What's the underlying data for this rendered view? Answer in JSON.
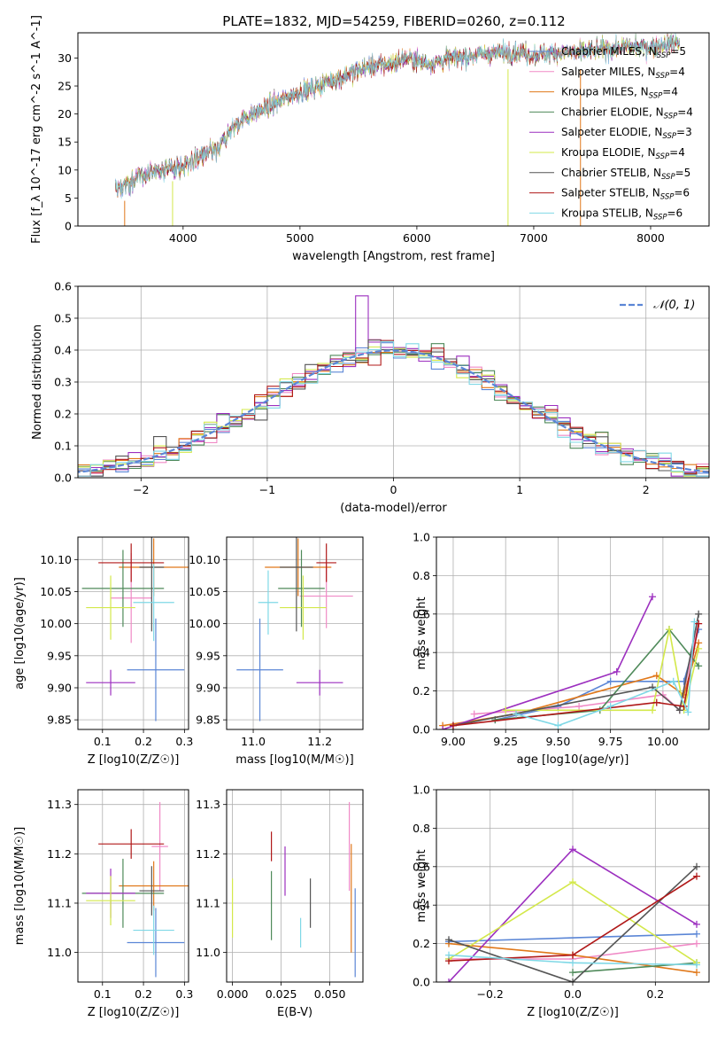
{
  "figure_title": "PLATE=1832, MJD=54259, FIBERID=0260, z=0.112",
  "legend_labels": [
    "Chabrier MILES, N",
    "Salpeter MILES, N",
    "Kroupa MILES, N",
    "Chabrier ELODIE, N",
    "Salpeter ELODIE, N",
    "Kroupa ELODIE, N",
    "Chabrier STELIB, N",
    "Salpeter STELIB, N",
    "Kroupa STELIB, N"
  ],
  "legend_sub": "SSP",
  "legend_counts": [
    "=5",
    "=4",
    "=4",
    "=4",
    "=3",
    "=4",
    "=5",
    "=6",
    "=6"
  ],
  "normal_label": "𝒩(0, 1)",
  "colors": [
    "#5b86d6",
    "#f08ac6",
    "#e0781a",
    "#4f8a5a",
    "#9c2fbf",
    "#d3e84a",
    "#555555",
    "#b01818",
    "#7fd8e6"
  ],
  "chart_data": [
    {
      "type": "line",
      "title": "PLATE=1832, MJD=54259, FIBERID=0260, z=0.112",
      "xlabel": "wavelength [Angstrom, rest frame]",
      "ylabel": "Flux [f_λ 10^-17 erg cm^-2 s^-1 A^-1]",
      "xlim": [
        3100,
        8500
      ],
      "ylim": [
        0,
        34.5
      ],
      "xticks": [
        "4000",
        "5000",
        "6000",
        "7000",
        "8000"
      ],
      "yticks": [
        "0",
        "5",
        "10",
        "15",
        "20",
        "25",
        "30"
      ],
      "spectrum_knots": [
        [
          3420,
          6.5
        ],
        [
          3500,
          7
        ],
        [
          3600,
          8.5
        ],
        [
          3700,
          9.5
        ],
        [
          3800,
          10
        ],
        [
          3900,
          10.5
        ],
        [
          4000,
          10.5
        ],
        [
          4100,
          12
        ],
        [
          4200,
          12.8
        ],
        [
          4300,
          13.5
        ],
        [
          4400,
          17
        ],
        [
          4500,
          19
        ],
        [
          4700,
          21
        ],
        [
          4900,
          23
        ],
        [
          5000,
          24
        ],
        [
          5100,
          24.5
        ],
        [
          5200,
          25.5
        ],
        [
          5400,
          27
        ],
        [
          5600,
          28.5
        ],
        [
          5800,
          29
        ],
        [
          5900,
          30
        ],
        [
          6000,
          29.5
        ],
        [
          6100,
          29
        ],
        [
          6300,
          30
        ],
        [
          6500,
          30.5
        ],
        [
          6700,
          31
        ],
        [
          6900,
          31
        ],
        [
          7000,
          30.5
        ],
        [
          7200,
          31
        ],
        [
          7400,
          31
        ],
        [
          7600,
          31.5
        ],
        [
          7800,
          32
        ],
        [
          8000,
          32
        ],
        [
          8250,
          33
        ]
      ],
      "grid": false,
      "legend_position": "top-right"
    },
    {
      "type": "histogram",
      "xlabel": "(data-model)/error",
      "ylabel": "Normed distribution",
      "xlim": [
        -2.5,
        2.5
      ],
      "ylim": [
        0,
        0.6
      ],
      "xticks": [
        "−2",
        "−1",
        "0",
        "1",
        "2"
      ],
      "yticks": [
        "0.0",
        "0.1",
        "0.2",
        "0.3",
        "0.4",
        "0.5",
        "0.6"
      ],
      "bin_width": 0.1,
      "grid": true,
      "legend_position": "top-right"
    },
    {
      "type": "scatter",
      "xlabel": "Z [log10(Z/Z☉)]",
      "ylabel": "age [log10(age/yr)]",
      "xlim": [
        0.04,
        0.31
      ],
      "ylim": [
        9.835,
        10.135
      ],
      "xticks": [
        "0.1",
        "0.2",
        "0.3"
      ],
      "yticks": [
        "9.85",
        "9.90",
        "9.95",
        "10.00",
        "10.05",
        "10.10"
      ],
      "points": [
        [
          0.23,
          9.928,
          0.07,
          0.08
        ],
        [
          0.17,
          10.04,
          0.05,
          0.07
        ],
        [
          0.225,
          10.088,
          0.085,
          0.045
        ],
        [
          0.15,
          10.055,
          0.1,
          0.06
        ],
        [
          0.12,
          9.908,
          0.06,
          0.02
        ],
        [
          0.12,
          10.025,
          0.06,
          0.05
        ],
        [
          0.22,
          10.088,
          0.03,
          0.1
        ],
        [
          0.17,
          10.095,
          0.08,
          0.03
        ],
        [
          0.225,
          10.033,
          0.05,
          0.06
        ]
      ]
    },
    {
      "type": "scatter",
      "xlabel": "mass [log10(M/M☉)]",
      "ylabel": "",
      "xlim": [
        10.92,
        11.33
      ],
      "ylim": [
        9.835,
        10.135
      ],
      "xticks": [
        "11.0",
        "11.2"
      ],
      "yticks": [
        "9.85",
        "9.90",
        "9.95",
        "10.00",
        "10.05",
        "10.10"
      ],
      "points": [
        [
          11.02,
          9.928,
          0.07,
          0.08
        ],
        [
          11.22,
          10.043,
          0.08,
          0.05
        ],
        [
          11.135,
          10.088,
          0.1,
          0.045
        ],
        [
          11.145,
          10.055,
          0.07,
          0.06
        ],
        [
          11.2,
          9.908,
          0.07,
          0.02
        ],
        [
          11.15,
          10.025,
          0.07,
          0.05
        ],
        [
          11.13,
          10.088,
          0.05,
          0.1
        ],
        [
          11.22,
          10.095,
          0.03,
          0.03
        ],
        [
          11.045,
          10.033,
          0.03,
          0.05
        ]
      ]
    },
    {
      "type": "line",
      "xlabel": "age [log10(age/yr)]",
      "ylabel": "mass weight",
      "xlim": [
        8.92,
        10.22
      ],
      "ylim": [
        0,
        1
      ],
      "xticks": [
        "9.00",
        "9.25",
        "9.50",
        "9.75",
        "10.00"
      ],
      "yticks": [
        "0.0",
        "0.2",
        "0.4",
        "0.6",
        "0.8",
        "1.0"
      ],
      "series": [
        {
          "values": [
            [
              9.2,
              0.05
            ],
            [
              9.5,
              0.12
            ],
            [
              9.75,
              0.25
            ],
            [
              10.1,
              0.25
            ],
            [
              10.17,
              0.52
            ]
          ]
        },
        {
          "values": [
            [
              9.1,
              0.08
            ],
            [
              9.6,
              0.12
            ],
            [
              10.0,
              0.18
            ],
            [
              10.08,
              0.1
            ],
            [
              10.17,
              0.55
            ]
          ]
        },
        {
          "values": [
            [
              8.95,
              0.02
            ],
            [
              9.3,
              0.08
            ],
            [
              9.97,
              0.28
            ],
            [
              10.1,
              0.18
            ],
            [
              10.17,
              0.45
            ]
          ]
        },
        {
          "values": [
            [
              9.2,
              0.05
            ],
            [
              9.7,
              0.1
            ],
            [
              10.03,
              0.52
            ],
            [
              10.17,
              0.33
            ]
          ]
        },
        {
          "values": [
            [
              8.95,
              0.0
            ],
            [
              9.78,
              0.3
            ],
            [
              9.95,
              0.69
            ]
          ]
        },
        {
          "values": [
            [
              9.25,
              0.1
            ],
            [
              9.95,
              0.1
            ],
            [
              10.03,
              0.52
            ],
            [
              10.1,
              0.1
            ],
            [
              10.17,
              0.42
            ]
          ]
        },
        {
          "values": [
            [
              9.0,
              0.02
            ],
            [
              9.95,
              0.22
            ],
            [
              10.08,
              0.1
            ],
            [
              10.17,
              0.6
            ]
          ]
        },
        {
          "values": [
            [
              9.0,
              0.02
            ],
            [
              9.97,
              0.14
            ],
            [
              10.1,
              0.12
            ],
            [
              10.17,
              0.55
            ]
          ]
        },
        {
          "values": [
            [
              9.3,
              0.08
            ],
            [
              9.5,
              0.02
            ],
            [
              9.75,
              0.12
            ],
            [
              10.05,
              0.25
            ],
            [
              10.12,
              0.09
            ],
            [
              10.15,
              0.56
            ]
          ]
        }
      ]
    },
    {
      "type": "scatter",
      "xlabel": "Z [log10(Z/Z☉)]",
      "ylabel": "mass [log10(M/M☉)]",
      "xlim": [
        0.04,
        0.31
      ],
      "ylim": [
        10.94,
        11.33
      ],
      "xticks": [
        "0.1",
        "0.2",
        "0.3"
      ],
      "yticks": [
        "11.0",
        "11.1",
        "11.2",
        "11.3"
      ],
      "points": [
        [
          0.23,
          11.02,
          0.07,
          0.07
        ],
        [
          0.24,
          11.215,
          0.02,
          0.09
        ],
        [
          0.225,
          11.135,
          0.085,
          0.05
        ],
        [
          0.15,
          11.12,
          0.1,
          0.07
        ],
        [
          0.12,
          11.12,
          0.06,
          0.05
        ],
        [
          0.12,
          11.105,
          0.06,
          0.05
        ],
        [
          0.22,
          11.125,
          0.03,
          0.05
        ],
        [
          0.17,
          11.22,
          0.08,
          0.03
        ],
        [
          0.225,
          11.045,
          0.05,
          0.05
        ]
      ]
    },
    {
      "type": "scatter",
      "xlabel": "E(B-V)",
      "ylabel": "",
      "xlim": [
        -0.003,
        0.067
      ],
      "ylim": [
        10.94,
        11.33
      ],
      "xticks": [
        "0.000",
        "0.025",
        "0.050"
      ],
      "yticks": [
        "11.0",
        "11.1",
        "11.2",
        "11.3"
      ],
      "points": [
        [
          0.063,
          11.04,
          0,
          0.09
        ],
        [
          0.06,
          11.215,
          0,
          0.09
        ],
        [
          0.061,
          11.11,
          0,
          0.11
        ],
        [
          0.02,
          11.095,
          0,
          0.07
        ],
        [
          0.027,
          11.165,
          0,
          0.05
        ],
        [
          0.0,
          11.09,
          0,
          0.06
        ],
        [
          0.04,
          11.1,
          0,
          0.05
        ],
        [
          0.02,
          11.215,
          0,
          0.03
        ],
        [
          0.035,
          11.04,
          0,
          0.03
        ]
      ]
    },
    {
      "type": "line",
      "xlabel": "Z [log10(Z/Z☉)]",
      "ylabel": "mass weight",
      "xlim": [
        -0.33,
        0.33
      ],
      "ylim": [
        0,
        1
      ],
      "xticks": [
        "−0.2",
        "0.0",
        "0.2"
      ],
      "yticks": [
        "0.0",
        "0.2",
        "0.4",
        "0.6",
        "0.8",
        "1.0"
      ],
      "series": [
        {
          "values": [
            [
              -0.3,
              0.21
            ],
            [
              0.3,
              0.25
            ]
          ]
        },
        {
          "values": [
            [
              -0.3,
              0.12
            ],
            [
              0.0,
              0.12
            ],
            [
              0.3,
              0.2
            ]
          ]
        },
        {
          "values": [
            [
              -0.3,
              0.2
            ],
            [
              0.0,
              0.14
            ],
            [
              0.3,
              0.05
            ]
          ]
        },
        {
          "values": [
            [
              0.0,
              0.05
            ],
            [
              0.3,
              0.1
            ]
          ]
        },
        {
          "values": [
            [
              -0.3,
              0.0
            ],
            [
              0.0,
              0.69
            ],
            [
              0.3,
              0.3
            ]
          ]
        },
        {
          "values": [
            [
              -0.3,
              0.12
            ],
            [
              0.0,
              0.52
            ],
            [
              0.3,
              0.1
            ]
          ]
        },
        {
          "values": [
            [
              -0.3,
              0.22
            ],
            [
              0.0,
              0.0
            ],
            [
              0.3,
              0.6
            ]
          ]
        },
        {
          "values": [
            [
              -0.3,
              0.11
            ],
            [
              0.0,
              0.14
            ],
            [
              0.3,
              0.55
            ]
          ]
        },
        {
          "values": [
            [
              -0.3,
              0.14
            ],
            [
              0.0,
              0.1
            ],
            [
              0.3,
              0.09
            ]
          ]
        }
      ]
    }
  ]
}
